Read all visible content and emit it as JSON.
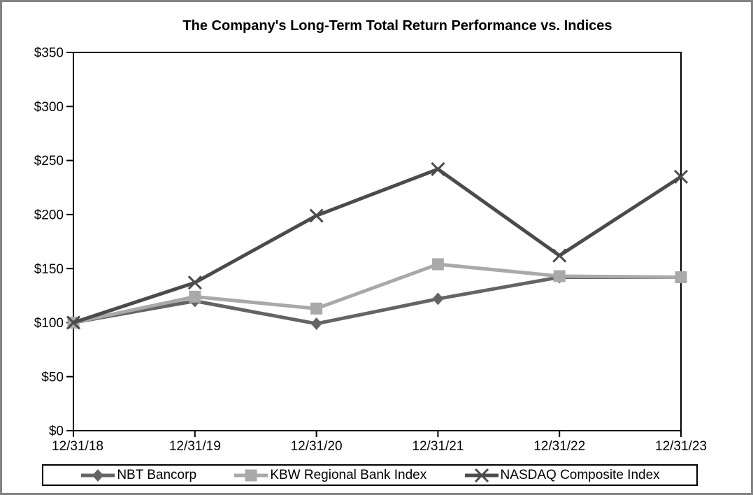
{
  "page": {
    "background_color": "#ffffff",
    "frame_border_color": "#838383"
  },
  "chart_data": {
    "type": "line",
    "title": "The Company's Long-Term Total Return Performance vs. Indices",
    "categories": [
      "12/31/18",
      "12/31/19",
      "12/31/20",
      "12/31/21",
      "12/31/22",
      "12/31/23"
    ],
    "series": [
      {
        "name": "NBT Bancorp",
        "marker": "diamond",
        "color": "#646464",
        "values": [
          100,
          120,
          99,
          122,
          142,
          142
        ]
      },
      {
        "name": "KBW Regional Bank Index",
        "marker": "square",
        "color": "#a9a9a9",
        "values": [
          100,
          124,
          113,
          154,
          143,
          142
        ]
      },
      {
        "name": "NASDAQ Composite Index",
        "marker": "x",
        "color": "#4b4b4b",
        "values": [
          100,
          137,
          199,
          242,
          162,
          235
        ]
      }
    ],
    "xlabel": "",
    "ylabel": "",
    "ylim": [
      0,
      350
    ],
    "y_tick_step": 50,
    "y_tick_labels": [
      "$0",
      "$50",
      "$100",
      "$150",
      "$200",
      "$250",
      "$300",
      "$350"
    ],
    "y_tick_prefix": "$",
    "grid": false,
    "legend_position": "bottom",
    "axis_color": "#000000",
    "line_width": 5
  }
}
